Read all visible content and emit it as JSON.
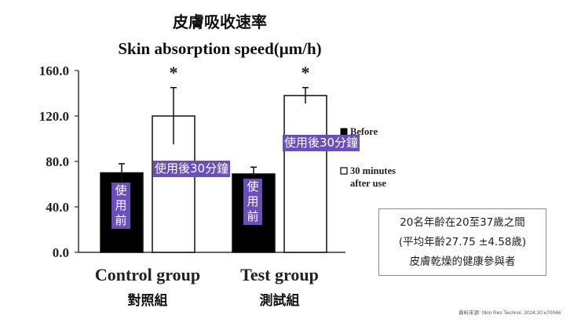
{
  "title_cn": "皮膚吸收速率",
  "title_en": "Skin absorption speed(μm/h)",
  "chart_data": {
    "type": "bar",
    "title": "Skin absorption speed(μm/h)",
    "categories": [
      "Control group",
      "Test group"
    ],
    "categories_cn": [
      "對照組",
      "測試組"
    ],
    "ylim": [
      0,
      160
    ],
    "yticks": [
      "0.0",
      "40.0",
      "80.0",
      "120.0",
      "160.0"
    ],
    "series": [
      {
        "name": "Before",
        "color": "#000000",
        "values": [
          70,
          69
        ],
        "errors": [
          8,
          6
        ]
      },
      {
        "name": "30 minutes after use",
        "color": "#ffffff",
        "values": [
          120,
          138
        ],
        "errors": [
          25,
          7
        ]
      }
    ],
    "significance": [
      "*",
      "*"
    ],
    "legend_position": "right"
  },
  "annotations": {
    "control_before": "使用前",
    "control_after": "使用後30分鐘",
    "test_before": "使用前",
    "test_after": "使用後30分鐘"
  },
  "info_box": {
    "line1": "20名年齡在20至37歲之間",
    "line2": "(平均年齡27.75 ±4.58歲)",
    "line3": "皮膚乾燥的健康參與者"
  },
  "source": "資料來源: Skin Res Technol. 2024;30:e70046"
}
